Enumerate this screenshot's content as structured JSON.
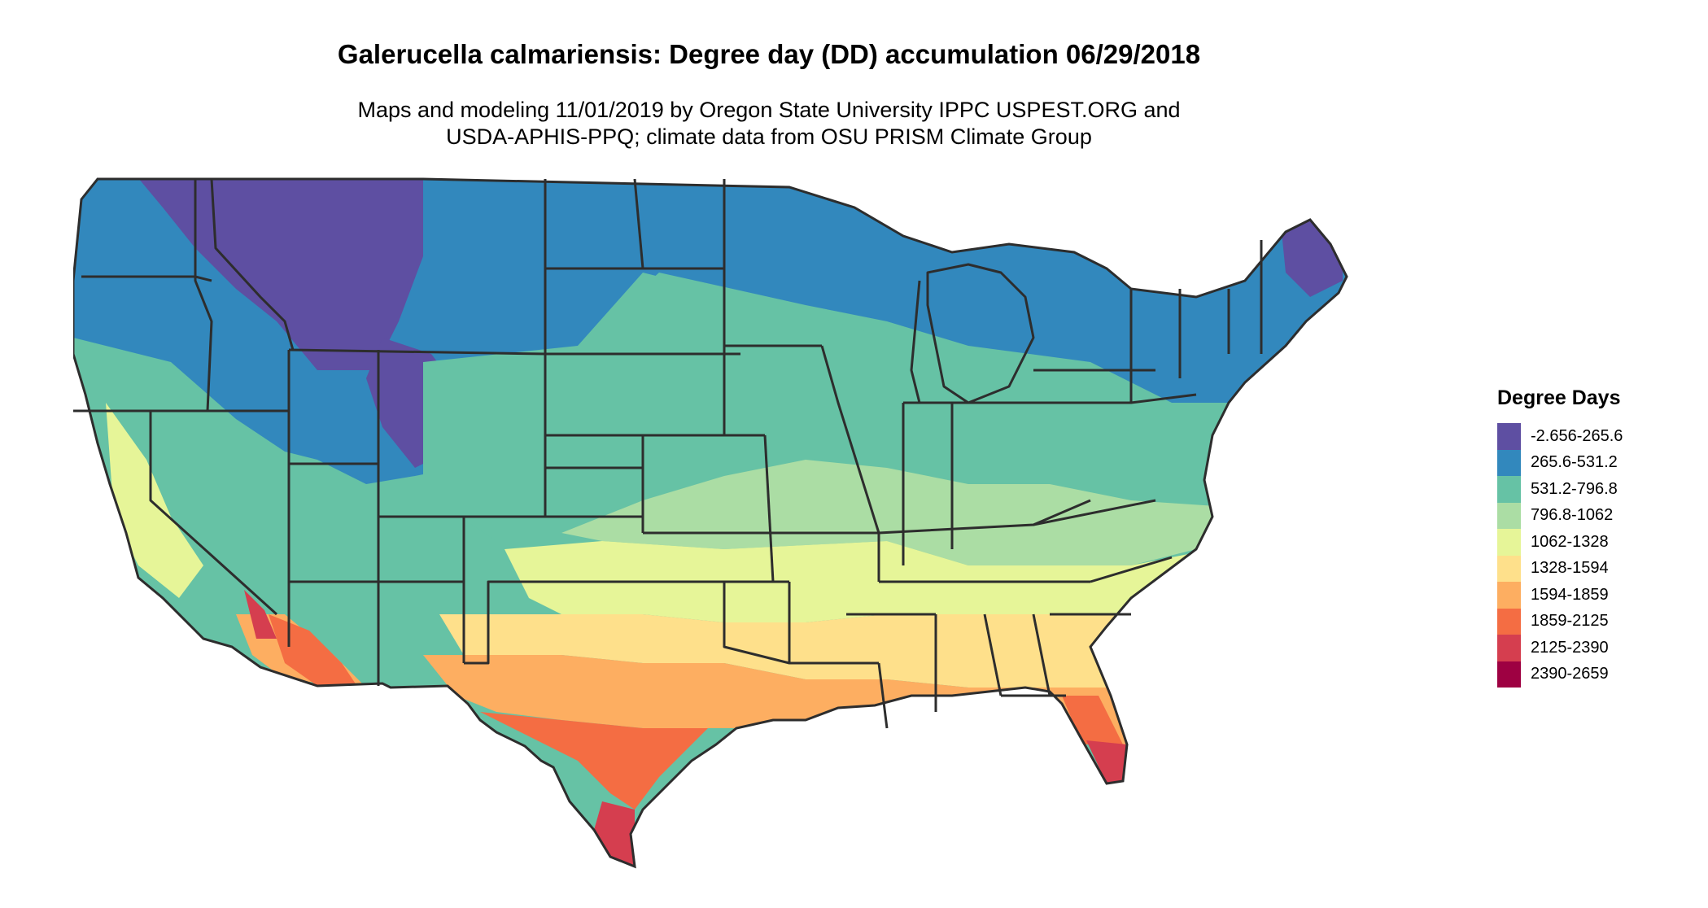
{
  "title": "Galerucella calmariensis: Degree day (DD) accumulation 06/29/2018",
  "subtitle_line1": "Maps and modeling 11/01/2019 by Oregon State University IPPC USPEST.ORG and",
  "subtitle_line2": "USDA-APHIS-PPQ; climate data from OSU PRISM Climate Group",
  "legend": {
    "title": "Degree Days",
    "items": [
      {
        "label": "-2.656-265.6",
        "color": "#5e4fa2"
      },
      {
        "label": "265.6-531.2",
        "color": "#3288bd"
      },
      {
        "label": "531.2-796.8",
        "color": "#66c2a5"
      },
      {
        "label": "796.8-1062",
        "color": "#abdda4"
      },
      {
        "label": "1062-1328",
        "color": "#e6f598"
      },
      {
        "label": "1328-1594",
        "color": "#fee08b"
      },
      {
        "label": "1594-1859",
        "color": "#fdae61"
      },
      {
        "label": "1859-2125",
        "color": "#f46d43"
      },
      {
        "label": "2125-2390",
        "color": "#d53e4f"
      },
      {
        "label": "2390-2659",
        "color": "#9e0142"
      }
    ]
  },
  "map": {
    "region": "Contiguous United States",
    "border_color": "#2d2d2d"
  }
}
